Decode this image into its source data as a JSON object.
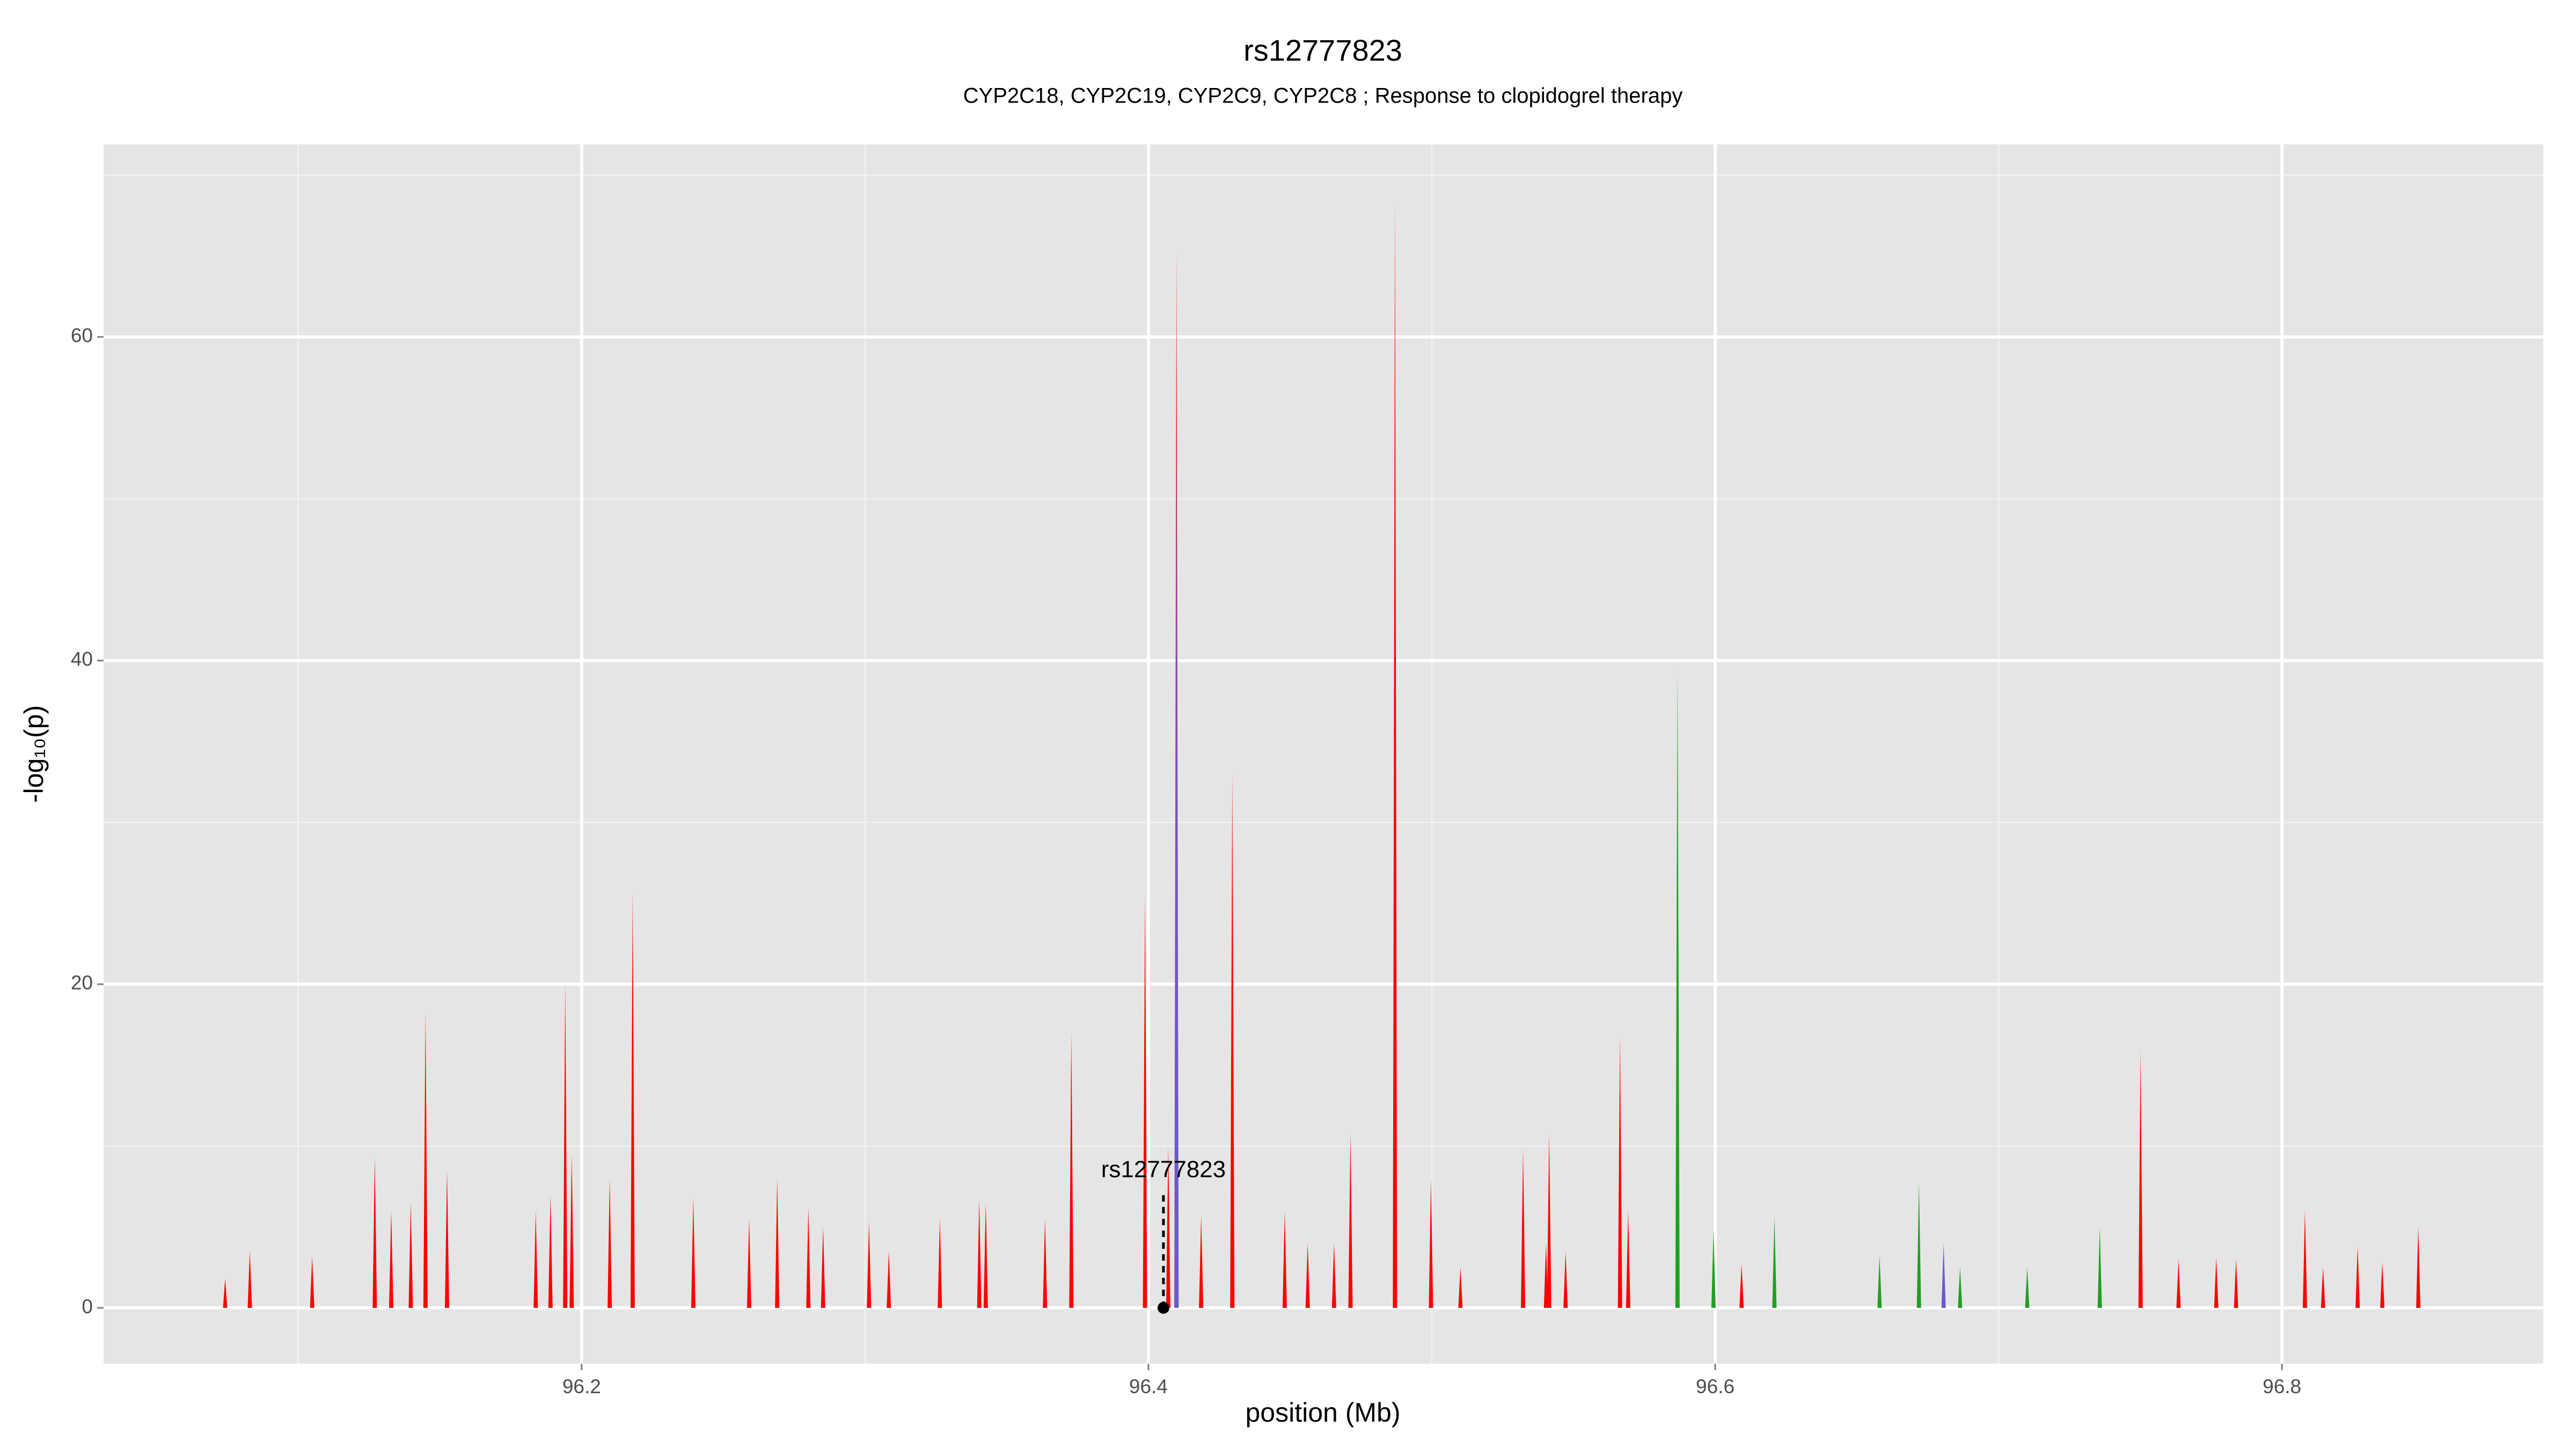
{
  "chart_data": {
    "type": "spike",
    "title": "rs12777823",
    "subtitle": "CYP2C18, CYP2C19, CYP2C9, CYP2C8 ; Response to clopidogrel therapy",
    "x_label": "position (Mb)",
    "y_label": "-log₁₀(p)",
    "xlim": [
      96.0313,
      96.8922
    ],
    "ylim": [
      -3.45,
      71.9
    ],
    "xticks": [
      96.2,
      96.4,
      96.6,
      96.8
    ],
    "yticks": [
      0,
      20,
      40,
      60
    ],
    "x_minor": [
      96.1,
      96.3,
      96.5,
      96.7
    ],
    "y_minor": [
      10,
      30,
      50,
      70
    ],
    "grid": true,
    "series": [
      {
        "color": "#ff0000",
        "x": [
          96.0742,
          96.0829,
          96.1049,
          96.127,
          96.1328,
          96.1397,
          96.1449,
          96.1525,
          96.1838,
          96.189,
          96.1942,
          96.1965,
          96.2099,
          96.218,
          96.2394,
          96.2591,
          96.269,
          96.28,
          96.2852,
          96.3014,
          96.3084,
          96.3264,
          96.3403,
          96.3426,
          96.3635,
          96.3728,
          96.3988,
          96.407,
          96.4099,
          96.4186,
          96.4296,
          96.4481,
          96.4562,
          96.4655,
          96.4713,
          96.487,
          96.4997,
          96.5101,
          96.5322,
          96.5403,
          96.5414,
          96.5472,
          96.5664,
          96.5693,
          96.6093,
          96.7501,
          96.7635,
          96.7768,
          96.7838,
          96.8081,
          96.8145,
          96.8267,
          96.8354,
          96.8481
        ],
        "values": [
          1.8,
          3.5,
          3.2,
          9.3,
          6,
          6.5,
          18.3,
          8.5,
          6,
          7,
          20,
          9.5,
          8,
          25.8,
          6.8,
          5.5,
          8,
          6.2,
          5,
          5.3,
          3.5,
          5.5,
          6.7,
          6.5,
          5.5,
          17,
          25.5,
          10,
          65.5,
          5.7,
          33.2,
          6,
          4,
          4,
          10.8,
          68.5,
          8,
          2.5,
          9.8,
          4,
          10.8,
          3.5,
          16.8,
          6,
          2.7,
          15.9,
          3,
          3.1,
          3,
          6,
          2.5,
          3.8,
          2.8,
          5
        ]
      },
      {
        "color": "#1fa01f",
        "x": [
          96.5867,
          96.5994,
          96.6209,
          96.658,
          96.6719,
          96.6864,
          96.7101,
          96.7357
        ],
        "values": [
          39.5,
          4.8,
          5.6,
          3.2,
          7.7,
          2.5,
          2.5,
          5
        ]
      },
      {
        "color": "#6a5acd",
        "x": [
          96.4099,
          96.6806
        ],
        "values": [
          55,
          4
        ]
      }
    ],
    "annotation": {
      "text": "rs12777823",
      "x": 96.4053,
      "y": 0
    }
  }
}
